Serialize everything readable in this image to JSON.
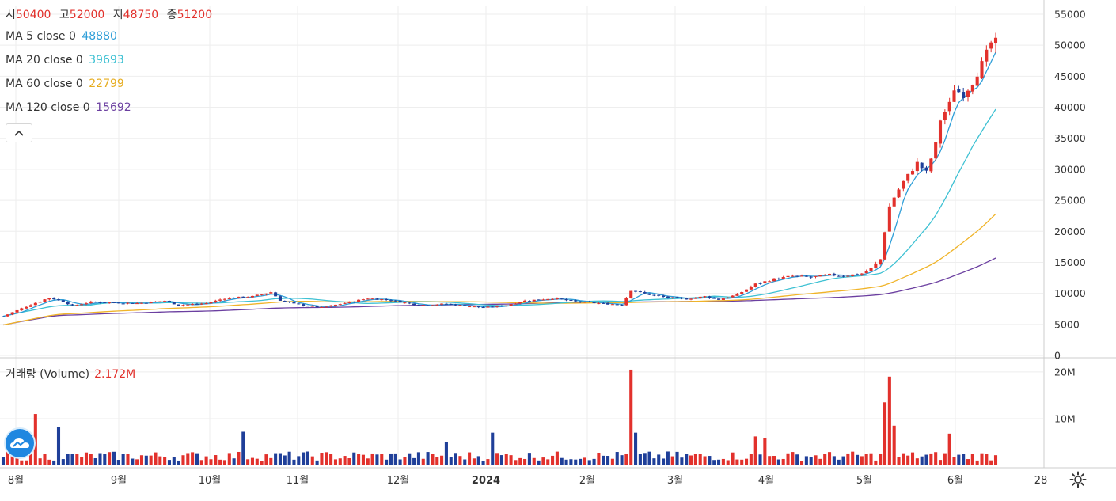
{
  "ohlc": {
    "open_label": "시",
    "open": "50400",
    "high_label": "고",
    "high": "52000",
    "low_label": "저",
    "low": "48750",
    "close_label": "종",
    "close": "51200"
  },
  "ma": [
    {
      "label": "MA 5 close 0",
      "value": "48880",
      "color": "#2e9ed8"
    },
    {
      "label": "MA 20 close 0",
      "value": "39693",
      "color": "#3ec1d3"
    },
    {
      "label": "MA 60 close 0",
      "value": "22799",
      "color": "#f0b429"
    },
    {
      "label": "MA 120 close 0",
      "value": "15692",
      "color": "#6b3fa0"
    }
  ],
  "collapse_icon": "chevron-up-icon",
  "volume": {
    "label": "거래량 (Volume)",
    "value": "2.172M"
  },
  "colors": {
    "up": "#e2312c",
    "down": "#1f3f99",
    "grid": "#eeeeee",
    "axis": "#cccccc"
  },
  "chart_data": [
    {
      "type": "candlestick",
      "y_ticks": [
        "55000",
        "50000",
        "45000",
        "40000",
        "35000",
        "30000",
        "25000",
        "20000",
        "15000",
        "10000",
        "5000",
        "0"
      ],
      "ylim": [
        0,
        55000
      ],
      "x_ticks": [
        "8월",
        "9월",
        "10월",
        "11월",
        "12월",
        "2024",
        "2월",
        "3월",
        "4월",
        "5월",
        "6월",
        "28"
      ],
      "series_key_points": {
        "close_start": 6500,
        "close_end": 51200,
        "range_2023_aug_to_2024_feb": [
          7500,
          10500
        ],
        "jump_2024_02_22": 10500,
        "range_2024_mar_to_apr": [
          9000,
          13500
        ],
        "breakout_2024_05_08": 20000,
        "level_2024_05_10": 24000,
        "level_2024_06_01": 38000,
        "peak_2024_06_14": 52000
      },
      "ma_end_values": {
        "MA5": 48880,
        "MA20": 39693,
        "MA60": 22799,
        "MA120": 15692
      }
    },
    {
      "type": "bar",
      "name": "거래량 (Volume)",
      "y_ticks": [
        "20M",
        "10M"
      ],
      "ylim": [
        0,
        21000000
      ],
      "key_values": {
        "max_2024_02_22": 20500000,
        "spike_2024_05_09": 19000000,
        "spike_2024_05_08": 13500000,
        "aug_2023": 11000000,
        "latest": 2172000
      }
    }
  ]
}
